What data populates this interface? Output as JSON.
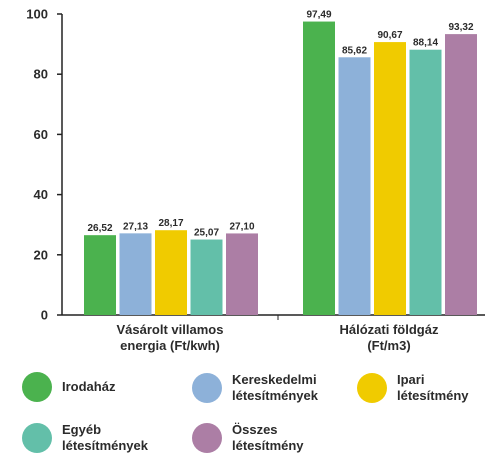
{
  "chart_data": {
    "type": "bar",
    "categories": [
      [
        "Vásárolt villamos",
        "energia (Ft/kwh)"
      ],
      [
        "Hálózati földgáz",
        "(Ft/m3)"
      ]
    ],
    "series": [
      {
        "name": "Irodaház",
        "legend_lines": [
          "Irodaház"
        ],
        "color": "#4bb24e",
        "values": [
          26.52,
          97.49
        ],
        "labels": [
          "26,52",
          "97,49"
        ]
      },
      {
        "name": "Kereskedelmi létesítmények",
        "legend_lines": [
          "Kereskedelmi",
          "létesítmények"
        ],
        "color": "#8db1d9",
        "values": [
          27.13,
          85.62
        ],
        "labels": [
          "27,13",
          "85,62"
        ]
      },
      {
        "name": "Ipari létesítmény",
        "legend_lines": [
          "Ipari",
          "létesítmény"
        ],
        "color": "#f0cb00",
        "values": [
          28.17,
          90.67
        ],
        "labels": [
          "28,17",
          "90,67"
        ]
      },
      {
        "name": "Egyéb létesítmények",
        "legend_lines": [
          "Egyéb",
          "létesítmények"
        ],
        "color": "#63bfa9",
        "values": [
          25.07,
          88.14
        ],
        "labels": [
          "25,07",
          "88,14"
        ]
      },
      {
        "name": "Összes létesítmény",
        "legend_lines": [
          "Összes",
          "létesítmény"
        ],
        "color": "#ac7ea5",
        "values": [
          27.1,
          93.32
        ],
        "labels": [
          "27,10",
          "93,32"
        ]
      }
    ],
    "yticks": [
      0,
      20,
      40,
      60,
      80,
      100
    ],
    "ylim": [
      0,
      100
    ],
    "grid": false,
    "legend_position": "bottom"
  }
}
